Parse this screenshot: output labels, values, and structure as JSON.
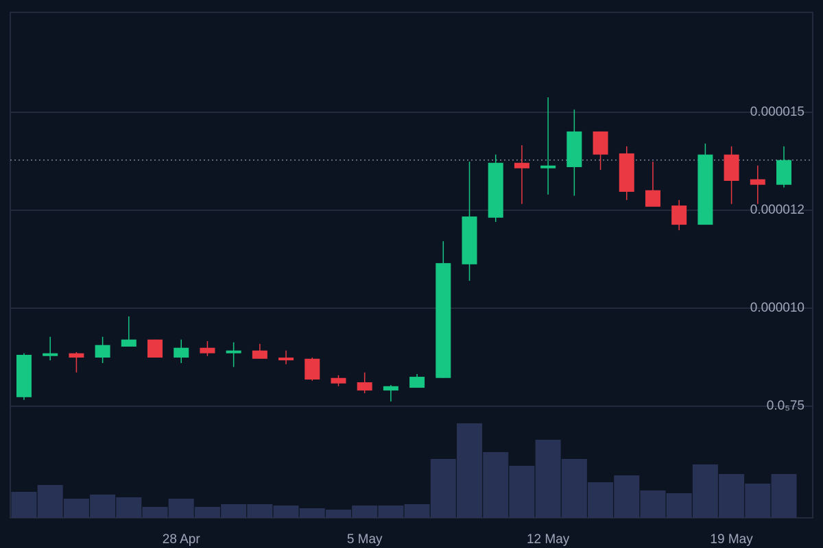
{
  "chart_data": {
    "type": "candlestick",
    "categories": [
      null,
      null,
      null,
      null,
      null,
      null,
      "28 Apr",
      null,
      null,
      null,
      null,
      null,
      null,
      "5 May",
      null,
      null,
      null,
      null,
      null,
      null,
      "12 May",
      null,
      null,
      null,
      null,
      null,
      null,
      "19 May",
      null,
      null
    ],
    "open": [
      7.73e-06,
      8.78e-06,
      8.85e-06,
      8.74e-06,
      9.02e-06,
      9.2e-06,
      8.74e-06,
      8.99e-06,
      8.85e-06,
      8.92e-06,
      8.74e-06,
      8.71e-06,
      8.22e-06,
      8.11e-06,
      7.9e-06,
      7.97e-06,
      8.22e-06,
      1.112e-05,
      1.231e-05,
      1.371e-05,
      1.357e-05,
      1.36e-05,
      1.451e-05,
      1.395e-05,
      1.301e-05,
      1.262e-05,
      1.213e-05,
      1.392e-05,
      1.329e-05,
      1.315e-05
    ],
    "high": [
      8.85e-06,
      9.27e-06,
      8.88e-06,
      9.27e-06,
      9.79e-06,
      9.2e-06,
      9.2e-06,
      9.16e-06,
      9.13e-06,
      9.09e-06,
      8.92e-06,
      8.74e-06,
      8.29e-06,
      8.36e-06,
      8.04e-06,
      8.32e-06,
      1.171e-05,
      1.374e-05,
      1.392e-05,
      1.416e-05,
      1.538e-05,
      1.507e-05,
      1.451e-05,
      1.413e-05,
      1.374e-05,
      1.276e-05,
      1.42e-05,
      1.413e-05,
      1.364e-05,
      1.413e-05
    ],
    "low": [
      7.66e-06,
      8.67e-06,
      8.36e-06,
      8.6e-06,
      9.02e-06,
      8.74e-06,
      8.6e-06,
      8.78e-06,
      8.5e-06,
      8.71e-06,
      8.57e-06,
      8.15e-06,
      8.01e-06,
      7.83e-06,
      7.62e-06,
      7.97e-06,
      8.22e-06,
      1.07e-05,
      1.22e-05,
      1.266e-05,
      1.29e-05,
      1.287e-05,
      1.353e-05,
      1.276e-05,
      1.259e-05,
      1.199e-05,
      1.213e-05,
      1.266e-05,
      1.266e-05,
      1.308e-05
    ],
    "close": [
      8.81e-06,
      8.85e-06,
      8.74e-06,
      9.06e-06,
      9.2e-06,
      8.74e-06,
      8.99e-06,
      8.85e-06,
      8.92e-06,
      8.71e-06,
      8.67e-06,
      8.18e-06,
      8.08e-06,
      7.9e-06,
      8.01e-06,
      8.25e-06,
      1.115e-05,
      1.234e-05,
      1.371e-05,
      1.357e-05,
      1.364e-05,
      1.451e-05,
      1.392e-05,
      1.297e-05,
      1.259e-05,
      1.213e-05,
      1.392e-05,
      1.325e-05,
      1.315e-05,
      1.378e-05
    ],
    "volume": [
      38,
      48,
      28,
      34,
      30,
      16,
      28,
      16,
      20,
      20,
      18,
      14,
      12,
      18,
      18,
      20,
      86,
      138,
      96,
      76,
      114,
      86,
      52,
      62,
      40,
      36,
      78,
      64,
      50,
      64
    ],
    "up_color": "#16c784",
    "down_color": "#ea3943",
    "volume_color": "#283255",
    "ylim": [
      4.65e-06,
      1.755e-05
    ],
    "yticks": [
      {
        "value": 7.5e-06,
        "label": "0.0₅75"
      },
      {
        "value": 1e-05,
        "label": "0.000010"
      },
      {
        "value": 1.25e-05,
        "label": "0.000012"
      },
      {
        "value": 1.5e-05,
        "label": "0.000015"
      }
    ],
    "grid": true
  }
}
